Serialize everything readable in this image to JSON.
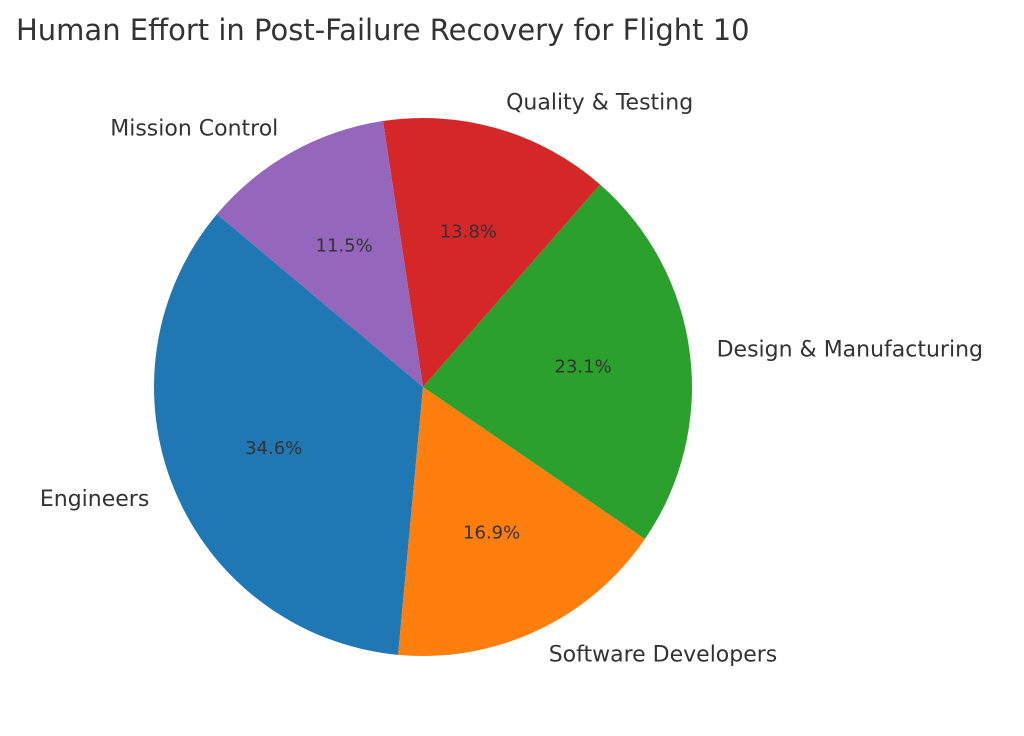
{
  "chart_data": {
    "type": "pie",
    "title": "Human Effort in Post-Failure Recovery for Flight 10",
    "categories": [
      "Engineers",
      "Software Developers",
      "Design & Manufacturing",
      "Quality & Testing",
      "Mission Control"
    ],
    "values": [
      34.6,
      16.9,
      23.1,
      13.8,
      11.5
    ],
    "value_labels": [
      "34.6%",
      "16.9%",
      "23.1%",
      "13.8%",
      "11.5%"
    ],
    "colors": [
      "#1f77b4",
      "#ff7f0e",
      "#2ca02c",
      "#d62728",
      "#9467bd"
    ],
    "start_angle_deg": 140,
    "direction": "counterclockwise",
    "legend": "none"
  }
}
